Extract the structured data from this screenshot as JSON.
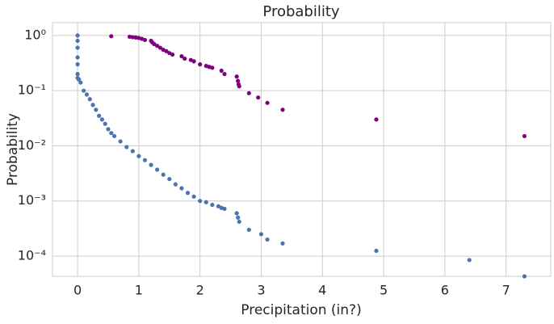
{
  "chart_data": {
    "type": "scatter",
    "title": "Probability",
    "x_label": "Precipitation (in?)",
    "y_label": "Probability",
    "log_y": true,
    "grid": true,
    "xlim": [
      -0.41,
      7.73
    ],
    "xticks": [
      0,
      1,
      2,
      3,
      4,
      5,
      6,
      7
    ],
    "ylim": [
      4.3e-05,
      1.71
    ],
    "yticks": [
      {
        "value": 1,
        "label": "10⁰"
      },
      {
        "value": 0.1,
        "label": "10⁻¹"
      },
      {
        "value": 0.01,
        "label": "10⁻²"
      },
      {
        "value": 0.001,
        "label": "10⁻³"
      },
      {
        "value": 0.0001,
        "label": "10⁻⁴"
      }
    ],
    "series": [
      {
        "color": "#800080",
        "x": [
          0.55,
          0.85,
          0.9,
          0.95,
          1.0,
          1.05,
          1.1,
          1.2,
          1.22,
          1.25,
          1.3,
          1.35,
          1.4,
          1.45,
          1.5,
          1.55,
          1.7,
          1.75,
          1.85,
          1.9,
          2.0,
          2.1,
          2.15,
          2.2,
          2.35,
          2.4,
          2.6,
          2.62,
          2.63,
          2.64,
          2.8,
          2.95,
          3.1,
          3.35,
          4.88,
          7.3
        ],
        "values": [
          0.97,
          0.95,
          0.93,
          0.92,
          0.9,
          0.87,
          0.83,
          0.8,
          0.75,
          0.7,
          0.65,
          0.6,
          0.55,
          0.52,
          0.48,
          0.45,
          0.42,
          0.38,
          0.36,
          0.34,
          0.3,
          0.28,
          0.27,
          0.26,
          0.23,
          0.2,
          0.18,
          0.15,
          0.13,
          0.12,
          0.09,
          0.075,
          0.06,
          0.045,
          0.03,
          0.015
        ]
      },
      {
        "color": "#4c72b0",
        "x": [
          0,
          0,
          0,
          0,
          0,
          0,
          0,
          0.02,
          0.05,
          0.1,
          0.15,
          0.2,
          0.25,
          0.3,
          0.35,
          0.4,
          0.45,
          0.5,
          0.55,
          0.6,
          0.7,
          0.8,
          0.9,
          1.0,
          1.1,
          1.2,
          1.3,
          1.4,
          1.5,
          1.6,
          1.7,
          1.8,
          1.9,
          2.0,
          2.1,
          2.2,
          2.3,
          2.35,
          2.4,
          2.6,
          2.62,
          2.64,
          2.8,
          3.0,
          3.1,
          3.35,
          4.88,
          6.4,
          7.3
        ],
        "values": [
          1,
          0.8,
          0.6,
          0.4,
          0.3,
          0.2,
          0.17,
          0.16,
          0.14,
          0.1,
          0.085,
          0.07,
          0.055,
          0.045,
          0.035,
          0.03,
          0.025,
          0.02,
          0.017,
          0.015,
          0.012,
          0.0095,
          0.008,
          0.0065,
          0.0055,
          0.0045,
          0.0037,
          0.003,
          0.0025,
          0.002,
          0.0017,
          0.0014,
          0.0012,
          0.001,
          0.00095,
          0.00085,
          0.0008,
          0.00075,
          0.00072,
          0.0006,
          0.0005,
          0.00042,
          0.0003,
          0.00025,
          0.0002,
          0.00017,
          0.000125,
          8.5e-05,
          4.3e-05
        ]
      }
    ]
  }
}
